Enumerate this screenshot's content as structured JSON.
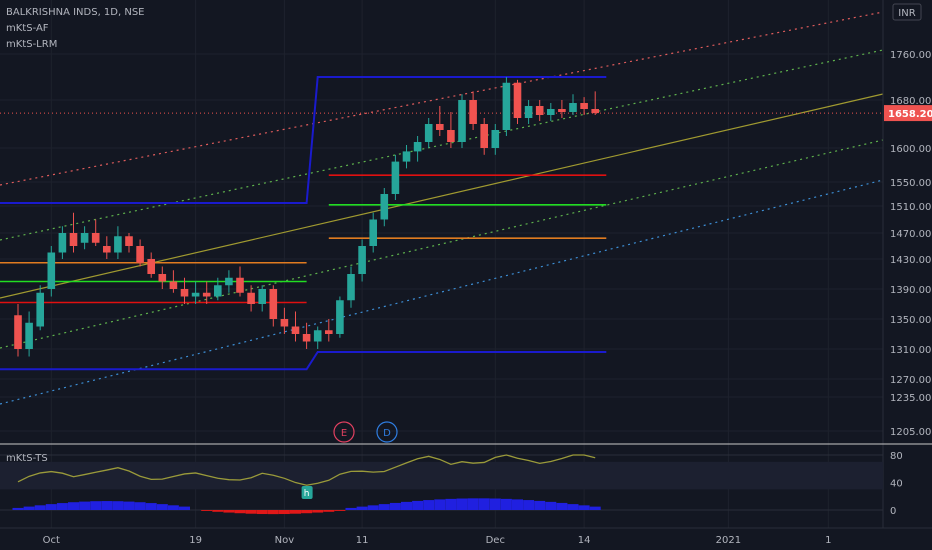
{
  "header": {
    "symbol_line": "BALKRISHNA INDS, 1D, NSE",
    "indicators": [
      "mKtS-AF",
      "mKtS-LRM"
    ],
    "currency": "INR"
  },
  "colors": {
    "bg": "#131722",
    "up": "#26a69a",
    "down": "#ef5350",
    "grid": "#1e222d",
    "text": "#b2b5be",
    "box_blue": "#1a1acd",
    "level_red": "#e01010",
    "level_green": "#22dd22",
    "level_orange": "#e07b20",
    "lrm_mid": "#a09a30",
    "lrm_upper": "#e05c5c",
    "lrm_upper_mid": "#5fb34d",
    "lrm_lower_mid": "#5fb34d",
    "lrm_lower": "#3d8fd6",
    "ts_line": "#9a9a3a",
    "last_price_bg": "#ef5350"
  },
  "chart_data": [
    {
      "type": "candlestick",
      "title": "BALKRISHNA INDS, 1D, NSE",
      "price_axis_ticks": [
        1205,
        1235,
        1270,
        1310,
        1350,
        1390,
        1430,
        1470,
        1510,
        1550,
        1600,
        1680,
        1760
      ],
      "price_axis_labels": [
        "1205.00",
        "1235.00",
        "1270.00",
        "1310.00",
        "1350.00",
        "1390.00",
        "1430.00",
        "1470.00",
        "1510.00",
        "1550.00",
        "1600.00",
        "1680.00",
        "1760.00"
      ],
      "last_price": 1658.2,
      "last_price_label": "1658.20",
      "time_labels": [
        {
          "label": "Oct",
          "index": 3
        },
        {
          "label": "19",
          "index": 16
        },
        {
          "label": "Nov",
          "index": 24
        },
        {
          "label": "11",
          "index": 31
        },
        {
          "label": "Dec",
          "index": 43
        },
        {
          "label": "14",
          "index": 51
        },
        {
          "label": "2021",
          "index": 64
        },
        {
          "label": "1",
          "index": 73
        }
      ],
      "candles": [
        [
          1355,
          1370,
          1300,
          1310
        ],
        [
          1310,
          1360,
          1300,
          1345
        ],
        [
          1340,
          1395,
          1335,
          1385
        ],
        [
          1390,
          1450,
          1380,
          1440
        ],
        [
          1440,
          1480,
          1430,
          1470
        ],
        [
          1470,
          1500,
          1440,
          1450
        ],
        [
          1455,
          1480,
          1445,
          1470
        ],
        [
          1470,
          1490,
          1450,
          1455
        ],
        [
          1450,
          1465,
          1430,
          1440
        ],
        [
          1440,
          1480,
          1430,
          1465
        ],
        [
          1465,
          1470,
          1440,
          1450
        ],
        [
          1450,
          1460,
          1420,
          1425
        ],
        [
          1430,
          1440,
          1405,
          1410
        ],
        [
          1410,
          1420,
          1390,
          1400
        ],
        [
          1400,
          1415,
          1385,
          1390
        ],
        [
          1390,
          1405,
          1370,
          1380
        ],
        [
          1380,
          1400,
          1370,
          1385
        ],
        [
          1385,
          1400,
          1370,
          1380
        ],
        [
          1380,
          1405,
          1375,
          1395
        ],
        [
          1395,
          1415,
          1385,
          1405
        ],
        [
          1405,
          1420,
          1380,
          1385
        ],
        [
          1385,
          1395,
          1360,
          1370
        ],
        [
          1370,
          1395,
          1360,
          1390
        ],
        [
          1390,
          1395,
          1340,
          1350
        ],
        [
          1350,
          1365,
          1330,
          1340
        ],
        [
          1340,
          1360,
          1320,
          1330
        ],
        [
          1330,
          1345,
          1310,
          1320
        ],
        [
          1320,
          1340,
          1310,
          1335
        ],
        [
          1335,
          1350,
          1320,
          1330
        ],
        [
          1330,
          1380,
          1325,
          1375
        ],
        [
          1375,
          1420,
          1365,
          1410
        ],
        [
          1410,
          1460,
          1400,
          1450
        ],
        [
          1450,
          1500,
          1440,
          1490
        ],
        [
          1490,
          1540,
          1480,
          1530
        ],
        [
          1530,
          1590,
          1520,
          1580
        ],
        [
          1580,
          1605,
          1570,
          1595
        ],
        [
          1595,
          1620,
          1580,
          1610
        ],
        [
          1610,
          1650,
          1600,
          1640
        ],
        [
          1640,
          1670,
          1620,
          1630
        ],
        [
          1630,
          1660,
          1600,
          1610
        ],
        [
          1610,
          1690,
          1600,
          1680
        ],
        [
          1680,
          1695,
          1630,
          1640
        ],
        [
          1640,
          1650,
          1590,
          1600
        ],
        [
          1600,
          1640,
          1590,
          1630
        ],
        [
          1630,
          1720,
          1620,
          1710
        ],
        [
          1710,
          1715,
          1640,
          1650
        ],
        [
          1650,
          1680,
          1640,
          1670
        ],
        [
          1670,
          1680,
          1645,
          1655
        ],
        [
          1655,
          1675,
          1645,
          1665
        ],
        [
          1665,
          1680,
          1650,
          1660
        ],
        [
          1660,
          1690,
          1655,
          1675
        ],
        [
          1675,
          1685,
          1655,
          1665
        ],
        [
          1665,
          1695,
          1655,
          1658.2
        ]
      ],
      "levels": {
        "box_upper_left": 1515,
        "box_lower_left": 1283,
        "box_upper_right": 1720,
        "box_lower_right": 1306,
        "red_left": 1372,
        "green_left": 1400,
        "orange_left": 1425,
        "red_right": 1560,
        "green_right": 1512,
        "orange_right": 1462
      },
      "event_markers": [
        "E",
        "D"
      ]
    },
    {
      "type": "line",
      "title": "mKtS-TS",
      "y_axis_ticks": [
        0,
        40,
        80
      ],
      "y_axis_labels": [
        "0",
        "40",
        "80"
      ],
      "marker_label": "h"
    }
  ]
}
